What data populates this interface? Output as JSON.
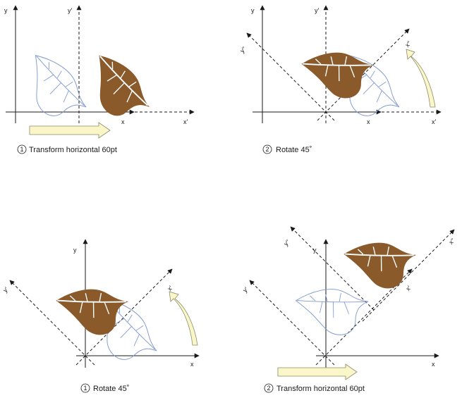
{
  "colors": {
    "axis": "#1a1a1a",
    "leaf_fill": "#8b5a2b",
    "leaf_vein": "#ffffff",
    "ghost_leaf": "#7f99cf",
    "arrow_fill": "#fbf6c8",
    "arrow_stroke": "#8a8a6a"
  },
  "panels": [
    {
      "labels": {
        "y": "y",
        "y_prime": "y'",
        "x": "x",
        "x_prime": "x'"
      },
      "caption": {
        "number": "1",
        "text": "Transform horizontal 60pt"
      }
    },
    {
      "labels": {
        "y": "y",
        "y_prime": "y'",
        "y_dprime": "y''",
        "x": "x",
        "x_prime": "x'",
        "x_dprime": "x''"
      },
      "caption": {
        "number": "2",
        "text": "Rotate 45˚"
      }
    },
    {
      "labels": {
        "y": "y",
        "y_prime": "y'",
        "x": "x",
        "x_prime": "x'"
      },
      "caption": {
        "number": "1",
        "text": "Rotate 45˚"
      }
    },
    {
      "labels": {
        "y": "y",
        "y_prime": "y'",
        "y_dprime": "y''",
        "x": "x",
        "x_prime": "x'",
        "x_dprime": "x''"
      },
      "caption": {
        "number": "2",
        "text": "Transform horizontal 60pt"
      }
    }
  ]
}
